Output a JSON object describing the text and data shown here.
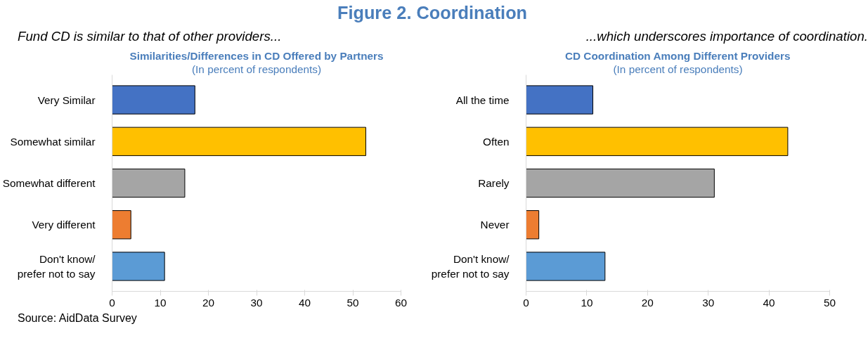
{
  "chart_data": [
    {
      "type": "bar",
      "orientation": "horizontal",
      "title": "Similarities/Differences in CD Offered by Partners",
      "subtitle": "(In percent of respondents)",
      "categories": [
        "Very Similar",
        "Somewhat similar",
        "Somewhat different",
        "Very different",
        "Don't know/\nprefer not to say"
      ],
      "values": [
        17.2,
        52.7,
        15.1,
        3.9,
        10.9
      ],
      "colors": [
        "#4472c4",
        "#ffc000",
        "#a5a5a5",
        "#ed7d31",
        "#5b9bd5"
      ],
      "xlim": [
        0,
        60
      ],
      "xticks": [
        0,
        10,
        20,
        30,
        40,
        50,
        60
      ],
      "grid": false,
      "legend": false,
      "annotations": [
        "Figure 2. Coordination",
        "Fund CD is similar to that of other providers...",
        "Source: AidData Survey"
      ]
    },
    {
      "type": "bar",
      "orientation": "horizontal",
      "title": "CD Coordination Among Different Providers",
      "subtitle": "(In percent of respondents)",
      "categories": [
        "All the time",
        "Often",
        "Rarely",
        "Never",
        "Don't know/\nprefer not to say"
      ],
      "values": [
        11.0,
        43.1,
        31.0,
        2.1,
        13.0
      ],
      "colors": [
        "#4472c4",
        "#ffc000",
        "#a5a5a5",
        "#ed7d31",
        "#5b9bd5"
      ],
      "xlim": [
        0,
        50
      ],
      "xticks": [
        0,
        10,
        20,
        30,
        40,
        50
      ],
      "grid": false,
      "legend": false,
      "annotations": [
        "...which underscores importance of coordination."
      ]
    }
  ]
}
